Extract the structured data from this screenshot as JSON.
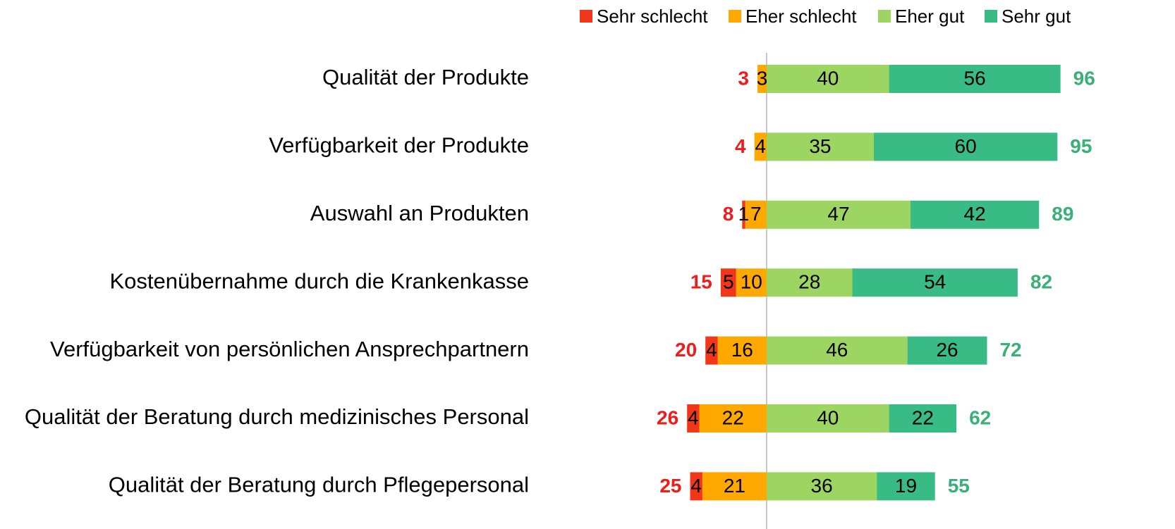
{
  "chart_data": {
    "type": "diverging-bar",
    "categories": [
      "Qualität der Produkte",
      "Verfügbarkeit der Produkte",
      "Auswahl an Produkten",
      "Kostenübernahme durch die Krankenkasse",
      "Verfügbarkeit von persönlichen Ansprechpartnern",
      "Qualität der Beratung durch medizinisches Personal",
      "Qualität der Beratung durch Pflegepersonal"
    ],
    "series": [
      {
        "name": "Sehr schlecht",
        "color": "#f2361a",
        "side": "negative",
        "values": [
          null,
          null,
          1,
          5,
          4,
          4,
          4
        ]
      },
      {
        "name": "Eher schlecht",
        "color": "#ffa800",
        "side": "negative",
        "values": [
          3,
          4,
          7,
          10,
          16,
          22,
          21
        ]
      },
      {
        "name": "Eher gut",
        "color": "#9dd562",
        "side": "positive",
        "values": [
          40,
          35,
          47,
          28,
          46,
          40,
          36
        ]
      },
      {
        "name": "Sehr gut",
        "color": "#38bb85",
        "side": "positive",
        "values": [
          56,
          60,
          42,
          54,
          26,
          22,
          19
        ]
      }
    ],
    "negative_totals": [
      3,
      4,
      8,
      15,
      20,
      26,
      25
    ],
    "positive_totals": [
      96,
      95,
      89,
      82,
      72,
      62,
      55
    ],
    "negative_total_color": "#ee1c1c",
    "positive_total_color": "#3aaf7a"
  }
}
